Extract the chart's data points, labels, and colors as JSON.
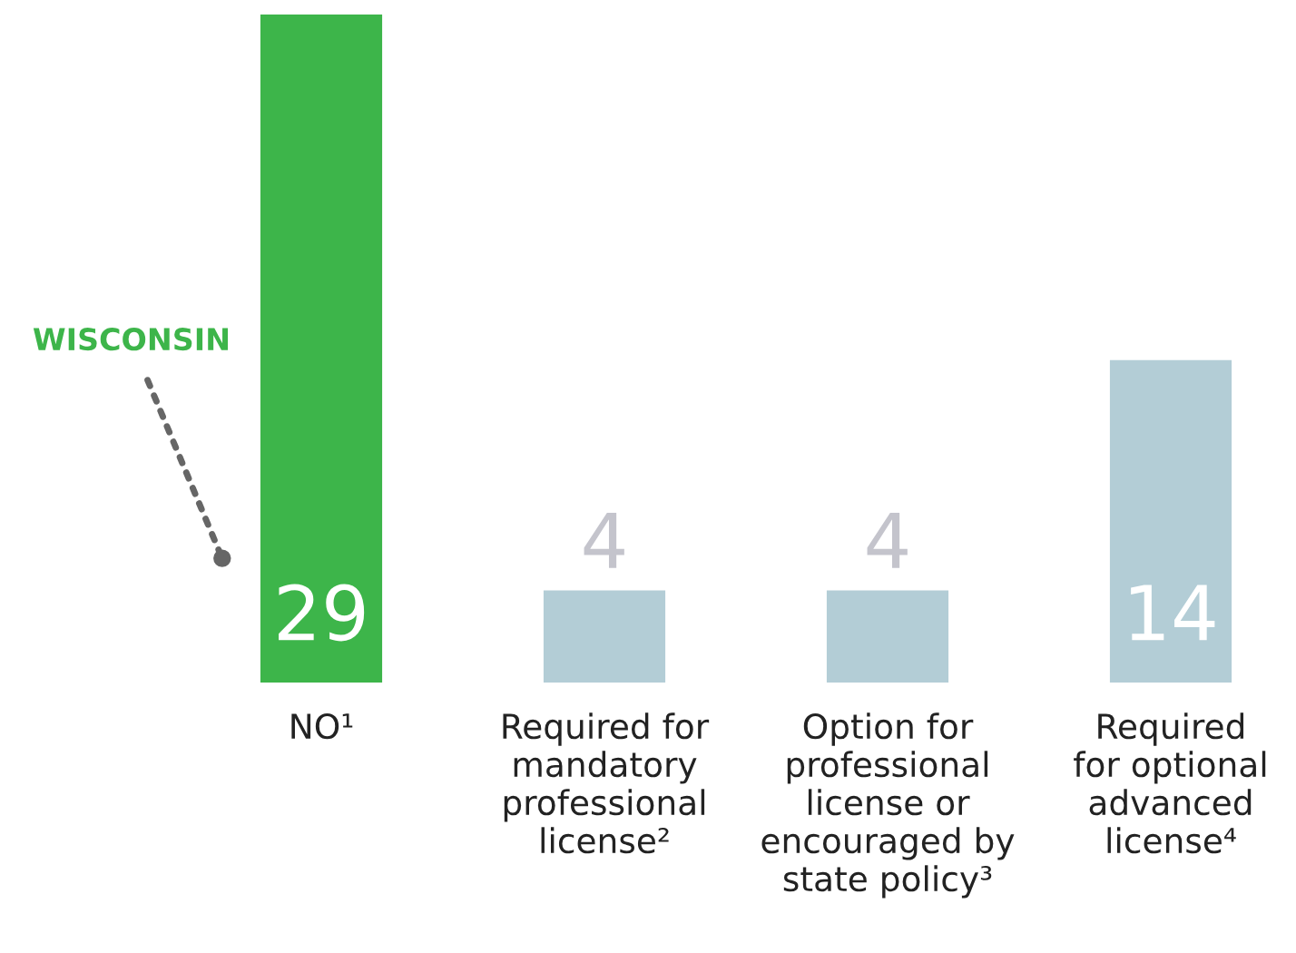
{
  "chart_data": {
    "type": "bar",
    "categories": [
      "NO¹",
      "Required for\nmandatory\nprofessional\nlicense²",
      "Option for\nprofessional\nlicense or\nencouraged by\nstate policy³",
      "Required\nfor optional\nadvanced\nlicense⁴"
    ],
    "values": [
      29,
      4,
      4,
      14
    ],
    "colors": [
      "#3db54a",
      "#b3cdd6",
      "#b3cdd6",
      "#b3cdd6"
    ],
    "data_labels": true,
    "annotations": [
      "WISCONSIN"
    ]
  }
}
